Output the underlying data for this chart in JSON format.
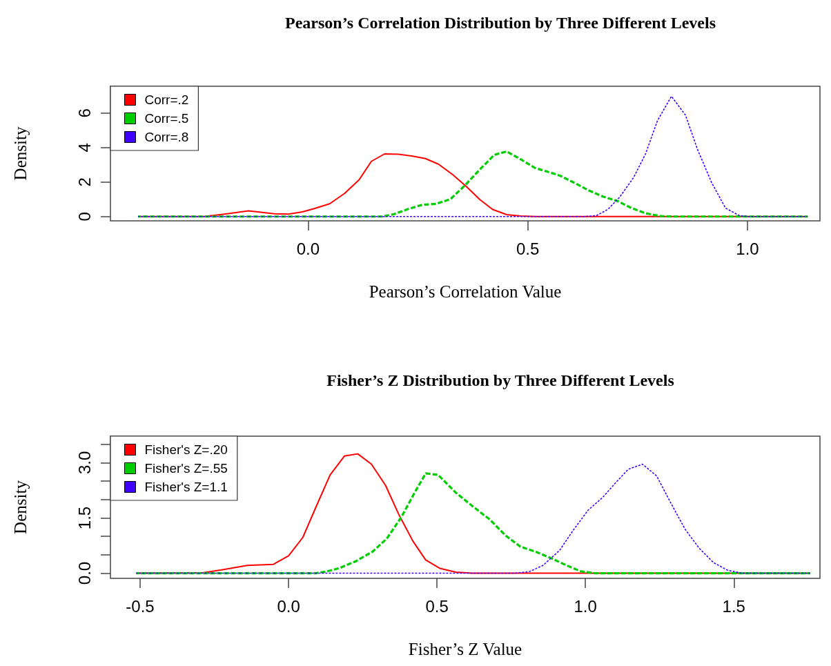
{
  "chart_data": [
    {
      "type": "line",
      "title": "Pearson’s Correlation Distribution by Three Different Levels",
      "xlabel": "Pearson’s Correlation Value",
      "ylabel": "Density",
      "xlim": [
        -0.45,
        1.165
      ],
      "xticks": [
        {
          "value": 0,
          "label": "0.0"
        },
        {
          "value": 0.5,
          "label": "0.5"
        },
        {
          "value": 1,
          "label": "1.0"
        }
      ],
      "ylim": [
        -0.25,
        7.55
      ],
      "yticks": [
        0,
        2,
        4,
        6
      ],
      "grid": false,
      "legend": "top left",
      "marker": "none",
      "series": [
        {
          "name": "Corr=.2",
          "color": "#ff0000",
          "line_style": "solid",
          "x": [
            -0.387,
            -0.237,
            -0.184,
            -0.136,
            -0.077,
            -0.045,
            -0.013,
            0.014,
            0.049,
            0.083,
            0.116,
            0.144,
            0.174,
            0.206,
            0.238,
            0.267,
            0.297,
            0.329,
            0.361,
            0.391,
            0.42,
            0.452,
            0.484,
            0.52,
            1.137
          ],
          "values": [
            0,
            0,
            0.16,
            0.33,
            0.16,
            0.14,
            0.27,
            0.46,
            0.74,
            1.34,
            2.13,
            3.2,
            3.63,
            3.61,
            3.5,
            3.36,
            3.03,
            2.43,
            1.72,
            0.98,
            0.41,
            0.11,
            0.03,
            0,
            0
          ]
        },
        {
          "name": "Corr=.5",
          "color": "#00cd00",
          "line_style": "dashed",
          "x": [
            -0.387,
            0.169,
            0.196,
            0.228,
            0.26,
            0.292,
            0.324,
            0.356,
            0.391,
            0.424,
            0.452,
            0.481,
            0.517,
            0.549,
            0.575,
            0.607,
            0.64,
            0.672,
            0.704,
            0.736,
            0.768,
            0.8,
            0.832,
            1.137
          ],
          "values": [
            0,
            0,
            0.14,
            0.44,
            0.68,
            0.74,
            1.01,
            1.78,
            2.73,
            3.58,
            3.77,
            3.36,
            2.81,
            2.57,
            2.35,
            1.94,
            1.5,
            1.15,
            0.9,
            0.49,
            0.19,
            0.03,
            0,
            0
          ]
        },
        {
          "name": "Corr=.8",
          "color": "#3f00ff",
          "line_style": "dotted",
          "x": [
            -0.387,
            0.629,
            0.656,
            0.682,
            0.709,
            0.741,
            0.768,
            0.795,
            0.827,
            0.859,
            0.886,
            0.918,
            0.95,
            0.982,
            1.003,
            1.137
          ],
          "values": [
            0,
            0,
            0.05,
            0.41,
            1.12,
            2.27,
            3.63,
            5.55,
            6.97,
            5.87,
            3.91,
            1.99,
            0.49,
            0.05,
            0,
            0
          ]
        }
      ]
    },
    {
      "type": "line",
      "title": "Fisher’s Z Distribution by Three Different Levels",
      "xlabel": "Fisher’s Z Value",
      "ylabel": "Density",
      "xlim": [
        -0.6,
        1.79
      ],
      "xticks": [
        -0.5,
        {
          "value": 0,
          "label": "0.0"
        },
        0.5,
        {
          "value": 1,
          "label": "1.0"
        },
        1.5
      ],
      "ylim": [
        -0.14,
        3.72
      ],
      "yticks": [
        {
          "value": 0,
          "label": "0.0"
        },
        {
          "value": 0.5,
          "label": null
        },
        {
          "value": 1,
          "label": null
        },
        1.5,
        {
          "value": 2,
          "label": null
        },
        {
          "value": 2.5,
          "label": null
        },
        {
          "value": 3,
          "label": "3.0"
        },
        {
          "value": 3.5,
          "label": null
        }
      ],
      "grid": false,
      "legend": "top left",
      "marker": "none",
      "series": [
        {
          "name": "Fisher's Z=.20",
          "color": "#ff0000",
          "line_style": "solid",
          "x": [
            -0.513,
            -0.29,
            -0.226,
            -0.139,
            -0.051,
            0,
            0.048,
            0.092,
            0.14,
            0.188,
            0.233,
            0.279,
            0.327,
            0.371,
            0.419,
            0.462,
            0.51,
            0.563,
            0.618,
            1.757
          ],
          "values": [
            0,
            0.01,
            0.09,
            0.21,
            0.24,
            0.47,
            0.97,
            1.79,
            2.67,
            3.18,
            3.24,
            2.96,
            2.38,
            1.6,
            0.87,
            0.36,
            0.13,
            0.03,
            0,
            0
          ]
        },
        {
          "name": "Fisher's Z=.55",
          "color": "#00cd00",
          "line_style": "dashed",
          "x": [
            -0.513,
            0.092,
            0.124,
            0.172,
            0.228,
            0.284,
            0.331,
            0.379,
            0.427,
            0.462,
            0.504,
            0.563,
            0.618,
            0.679,
            0.73,
            0.781,
            0.833,
            0.881,
            0.937,
            0.985,
            1.033,
            1.757
          ],
          "values": [
            0,
            0,
            0.04,
            0.14,
            0.33,
            0.59,
            0.94,
            1.51,
            2.22,
            2.71,
            2.67,
            2.19,
            1.83,
            1.45,
            1.03,
            0.72,
            0.58,
            0.42,
            0.21,
            0.05,
            0,
            0
          ]
        },
        {
          "name": "Fisher's Z=1.1",
          "color": "#3f00ff",
          "line_style": "dotted",
          "x": [
            -0.513,
            0.762,
            0.81,
            0.857,
            0.913,
            0.961,
            1.009,
            1.057,
            1.1,
            1.144,
            1.192,
            1.24,
            1.288,
            1.336,
            1.383,
            1.431,
            1.479,
            1.527,
            1.757
          ],
          "values": [
            0,
            0,
            0.04,
            0.21,
            0.62,
            1.19,
            1.71,
            2.05,
            2.44,
            2.82,
            2.96,
            2.64,
            1.9,
            1.19,
            0.68,
            0.29,
            0.08,
            0,
            0
          ]
        }
      ]
    }
  ]
}
